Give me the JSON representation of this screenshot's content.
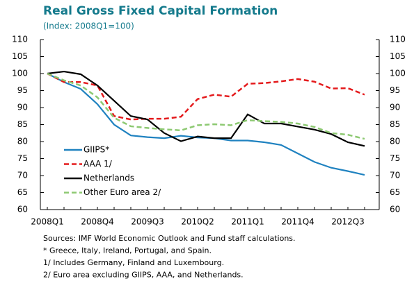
{
  "chart_data": {
    "type": "line",
    "title": "Real Gross Fixed Capital Formation",
    "subtitle": "(Index: 2008Q1=100)",
    "categories": [
      "2008Q1",
      null,
      null,
      "2008Q4",
      null,
      null,
      "2009Q3",
      null,
      null,
      "2010Q2",
      null,
      null,
      "2011Q1",
      null,
      null,
      "2011Q4",
      null,
      null,
      "2012Q3",
      null
    ],
    "series": [
      {
        "name": "GIIPS*",
        "color": "#1f82c0",
        "style": "solid",
        "values": [
          100,
          97.5,
          95.5,
          91,
          85,
          81.8,
          81.3,
          81,
          81.7,
          81.2,
          81,
          80.3,
          80.3,
          79.8,
          79,
          76.5,
          74,
          72.3,
          71.3,
          70.2
        ]
      },
      {
        "name": "AAA 1/",
        "color": "#e41a1c",
        "style": "dashed",
        "values": [
          100,
          97.5,
          97.5,
          96.5,
          87.5,
          86.5,
          86.7,
          86.7,
          87.3,
          92.5,
          93.8,
          93.2,
          97,
          97.2,
          97.7,
          98.4,
          97.6,
          95.6,
          95.7,
          93.8
        ]
      },
      {
        "name": "Netherlands",
        "color": "#000000",
        "style": "solid",
        "values": [
          100,
          100.6,
          99.8,
          96.5,
          92,
          87.5,
          86.5,
          82.5,
          80.1,
          81.5,
          81,
          81,
          88,
          85.3,
          85.3,
          84.4,
          83.5,
          82.2,
          79.8,
          78.7
        ]
      },
      {
        "name": "Other Euro area 2/",
        "color": "#8dc972",
        "style": "dashed",
        "values": [
          100,
          98,
          96.5,
          93,
          87,
          84.5,
          84,
          83.6,
          83.3,
          84.8,
          85.1,
          84.8,
          86.3,
          86,
          85.8,
          85.3,
          84.3,
          82.5,
          82,
          80.8
        ]
      }
    ],
    "ylim": [
      60,
      110
    ],
    "yticks": [
      60,
      65,
      70,
      75,
      80,
      85,
      90,
      95,
      100,
      105,
      110
    ],
    "y2lim": [
      60,
      110
    ],
    "y2ticks": [
      60,
      65,
      70,
      75,
      80,
      85,
      90,
      95,
      100,
      105,
      110
    ],
    "grid": false,
    "legend": "lower left",
    "notes": [
      "Sources: IMF World Economic Outlook and Fund staff calculations.",
      "* Greece, Italy, Ireland, Portugal, and Spain.",
      "1/ Includes Germany, Finland and Luxembourg.",
      "2/ Euro area excluding GIIPS, AAA, and Netherlands."
    ]
  }
}
